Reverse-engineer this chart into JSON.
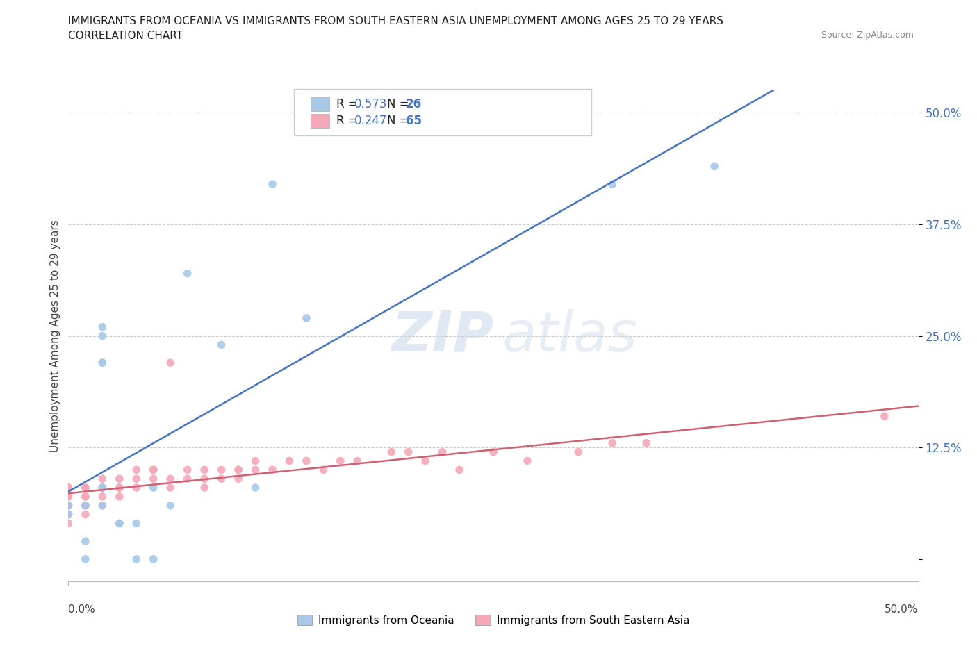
{
  "title_line1": "IMMIGRANTS FROM OCEANIA VS IMMIGRANTS FROM SOUTH EASTERN ASIA UNEMPLOYMENT AMONG AGES 25 TO 29 YEARS",
  "title_line2": "CORRELATION CHART",
  "source": "Source: ZipAtlas.com",
  "ylabel": "Unemployment Among Ages 25 to 29 years",
  "blue_label": "Immigrants from Oceania",
  "pink_label": "Immigrants from South Eastern Asia",
  "R_blue": 0.573,
  "N_blue": 26,
  "R_pink": 0.247,
  "N_pink": 65,
  "blue_color": "#a8c8e8",
  "pink_color": "#f4a8b8",
  "blue_line_color": "#4472c4",
  "pink_line_color": "#d06070",
  "blue_x": [
    0.0,
    0.0,
    0.01,
    0.01,
    0.01,
    0.02,
    0.02,
    0.02,
    0.02,
    0.02,
    0.02,
    0.02,
    0.03,
    0.03,
    0.04,
    0.04,
    0.05,
    0.05,
    0.06,
    0.07,
    0.09,
    0.11,
    0.12,
    0.14,
    0.32,
    0.38
  ],
  "blue_y": [
    0.05,
    0.06,
    0.0,
    0.02,
    0.06,
    0.22,
    0.22,
    0.25,
    0.26,
    0.08,
    0.08,
    0.06,
    0.04,
    0.04,
    0.0,
    0.04,
    0.0,
    0.08,
    0.06,
    0.32,
    0.24,
    0.08,
    0.42,
    0.27,
    0.42,
    0.44
  ],
  "pink_x": [
    0.0,
    0.0,
    0.0,
    0.0,
    0.0,
    0.0,
    0.0,
    0.0,
    0.0,
    0.0,
    0.0,
    0.0,
    0.01,
    0.01,
    0.01,
    0.01,
    0.01,
    0.01,
    0.01,
    0.02,
    0.02,
    0.02,
    0.02,
    0.03,
    0.03,
    0.03,
    0.03,
    0.04,
    0.04,
    0.04,
    0.05,
    0.05,
    0.05,
    0.06,
    0.06,
    0.06,
    0.07,
    0.07,
    0.08,
    0.08,
    0.08,
    0.09,
    0.09,
    0.1,
    0.1,
    0.1,
    0.11,
    0.11,
    0.12,
    0.13,
    0.14,
    0.15,
    0.16,
    0.17,
    0.19,
    0.2,
    0.21,
    0.22,
    0.23,
    0.25,
    0.27,
    0.3,
    0.32,
    0.34,
    0.48
  ],
  "pink_y": [
    0.05,
    0.06,
    0.06,
    0.07,
    0.07,
    0.08,
    0.08,
    0.05,
    0.05,
    0.06,
    0.06,
    0.04,
    0.05,
    0.06,
    0.07,
    0.08,
    0.07,
    0.08,
    0.06,
    0.08,
    0.07,
    0.06,
    0.09,
    0.07,
    0.08,
    0.09,
    0.08,
    0.09,
    0.08,
    0.1,
    0.1,
    0.09,
    0.1,
    0.22,
    0.08,
    0.09,
    0.1,
    0.09,
    0.08,
    0.1,
    0.09,
    0.1,
    0.09,
    0.1,
    0.09,
    0.1,
    0.11,
    0.1,
    0.1,
    0.11,
    0.11,
    0.1,
    0.11,
    0.11,
    0.12,
    0.12,
    0.11,
    0.12,
    0.1,
    0.12,
    0.11,
    0.12,
    0.13,
    0.13,
    0.16
  ],
  "xlim": [
    0.0,
    0.5
  ],
  "ylim": [
    -0.025,
    0.525
  ],
  "yticks": [
    0.0,
    0.125,
    0.25,
    0.375,
    0.5
  ],
  "ytick_labels": [
    "",
    "12.5%",
    "25.0%",
    "37.5%",
    "50.0%"
  ],
  "bg_color": "#ffffff"
}
